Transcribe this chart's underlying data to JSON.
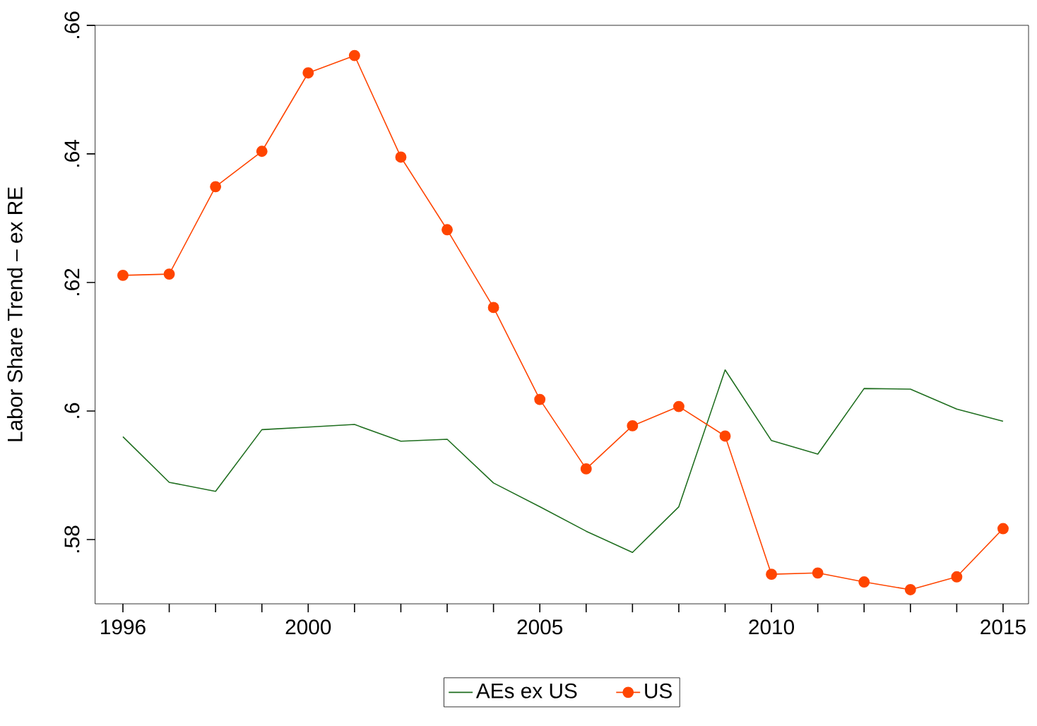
{
  "chart_data": {
    "type": "line",
    "ylabel": "Labor Share Trend – ex RE",
    "x": [
      1996,
      1997,
      1998,
      1999,
      2000,
      2001,
      2002,
      2003,
      2004,
      2005,
      2006,
      2007,
      2008,
      2009,
      2010,
      2011,
      2012,
      2013,
      2014,
      2015
    ],
    "series": [
      {
        "name": "AEs ex US",
        "color": "#1f6e1f",
        "marker": "none",
        "values": [
          0.596,
          0.5889,
          0.5875,
          0.5971,
          0.5975,
          0.5979,
          0.5953,
          0.5956,
          0.5888,
          0.5851,
          0.5813,
          0.578,
          0.5851,
          0.6064,
          0.5954,
          0.5933,
          0.6035,
          0.6034,
          0.6003,
          0.5984
        ]
      },
      {
        "name": "US",
        "color": "#ff4500",
        "marker": "circle",
        "values": [
          0.6211,
          0.6213,
          0.6349,
          0.6404,
          0.6526,
          0.6553,
          0.6395,
          0.6282,
          0.6161,
          0.6018,
          0.591,
          0.5977,
          0.6007,
          0.5961,
          0.5746,
          0.5748,
          0.5734,
          0.5722,
          0.5742,
          0.5817
        ]
      }
    ],
    "xlim": [
      1995.4,
      2015.55
    ],
    "ylim": [
      0.57,
      0.66
    ],
    "xticks": [
      1996,
      {
        "value": 1997,
        "label": null
      },
      {
        "value": 1998,
        "label": null
      },
      {
        "value": 1999,
        "label": null
      },
      2000,
      {
        "value": 2001,
        "label": null
      },
      {
        "value": 2002,
        "label": null
      },
      {
        "value": 2003,
        "label": null
      },
      {
        "value": 2004,
        "label": null
      },
      2005,
      {
        "value": 2006,
        "label": null
      },
      {
        "value": 2007,
        "label": null
      },
      {
        "value": 2008,
        "label": null
      },
      {
        "value": 2009,
        "label": null
      },
      2010,
      {
        "value": 2011,
        "label": null
      },
      {
        "value": 2012,
        "label": null
      },
      {
        "value": 2013,
        "label": null
      },
      {
        "value": 2014,
        "label": null
      },
      2015
    ],
    "yticks": [
      {
        "value": 0.58,
        "label": ".58"
      },
      {
        "value": 0.6,
        "label": ".6"
      },
      {
        "value": 0.62,
        "label": ".62"
      },
      {
        "value": 0.64,
        "label": ".64"
      },
      {
        "value": 0.66,
        "label": ".66"
      }
    ],
    "grid": false,
    "legend": "bottom",
    "line_style": "solid"
  }
}
